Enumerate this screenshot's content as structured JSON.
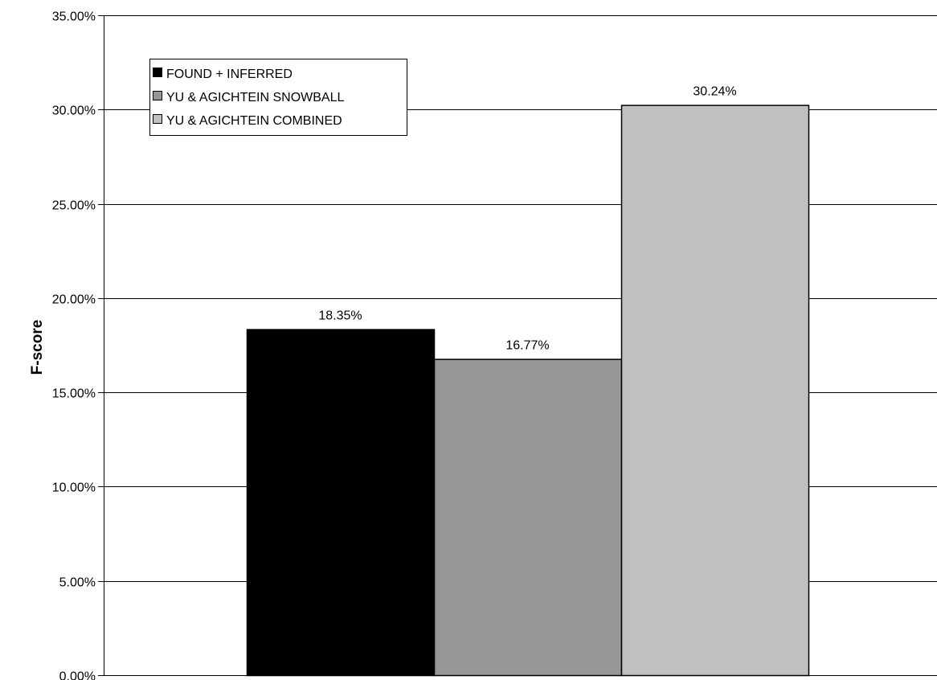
{
  "chart_data": {
    "type": "bar",
    "title": "",
    "xlabel": "",
    "ylabel": "F-score",
    "ylim": [
      0,
      35
    ],
    "y_ticks": [
      0,
      5,
      10,
      15,
      20,
      25,
      30,
      35
    ],
    "y_tick_format": "percent_2dp",
    "grid": "horizontal",
    "legend_position": "top-left",
    "series": [
      {
        "name": "FOUND + INFERRED",
        "value": 18.35,
        "label": "18.35%",
        "color": "#000000"
      },
      {
        "name": "YU & AGICHTEIN SNOWBALL",
        "value": 16.77,
        "label": "16.77%",
        "color": "#969696"
      },
      {
        "name": "YU & AGICHTEIN COMBINED",
        "value": 30.24,
        "label": "30.24%",
        "color": "#c0c0c0"
      }
    ]
  }
}
